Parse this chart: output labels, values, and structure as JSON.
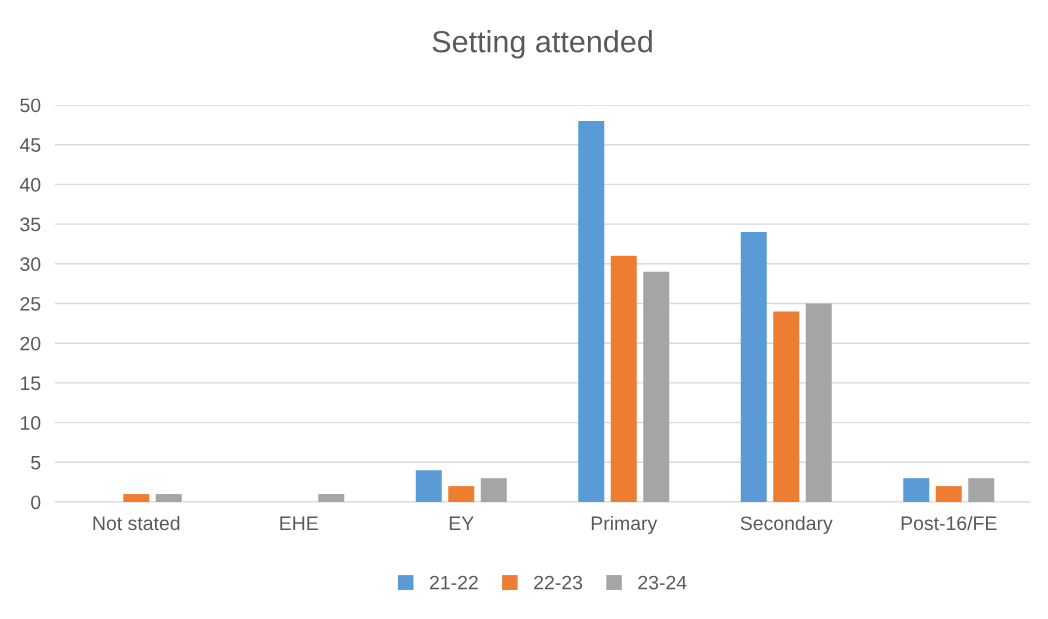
{
  "chart_data": {
    "type": "bar",
    "title": "Setting attended",
    "categories": [
      "Not stated",
      "EHE",
      "EY",
      "Primary",
      "Secondary",
      "Post-16/FE"
    ],
    "series": [
      {
        "name": "21-22",
        "color": "#5b9bd5",
        "values": [
          0,
          0,
          4,
          48,
          34,
          3
        ]
      },
      {
        "name": "22-23",
        "color": "#ed7d31",
        "values": [
          1,
          0,
          2,
          31,
          24,
          2
        ]
      },
      {
        "name": "23-24",
        "color": "#a5a5a5",
        "values": [
          1,
          1,
          3,
          29,
          25,
          3
        ]
      }
    ],
    "ylim": [
      0,
      50
    ],
    "yticks": [
      0,
      5,
      10,
      15,
      20,
      25,
      30,
      35,
      40,
      45,
      50
    ],
    "grid": "y",
    "legend": "bottom"
  }
}
